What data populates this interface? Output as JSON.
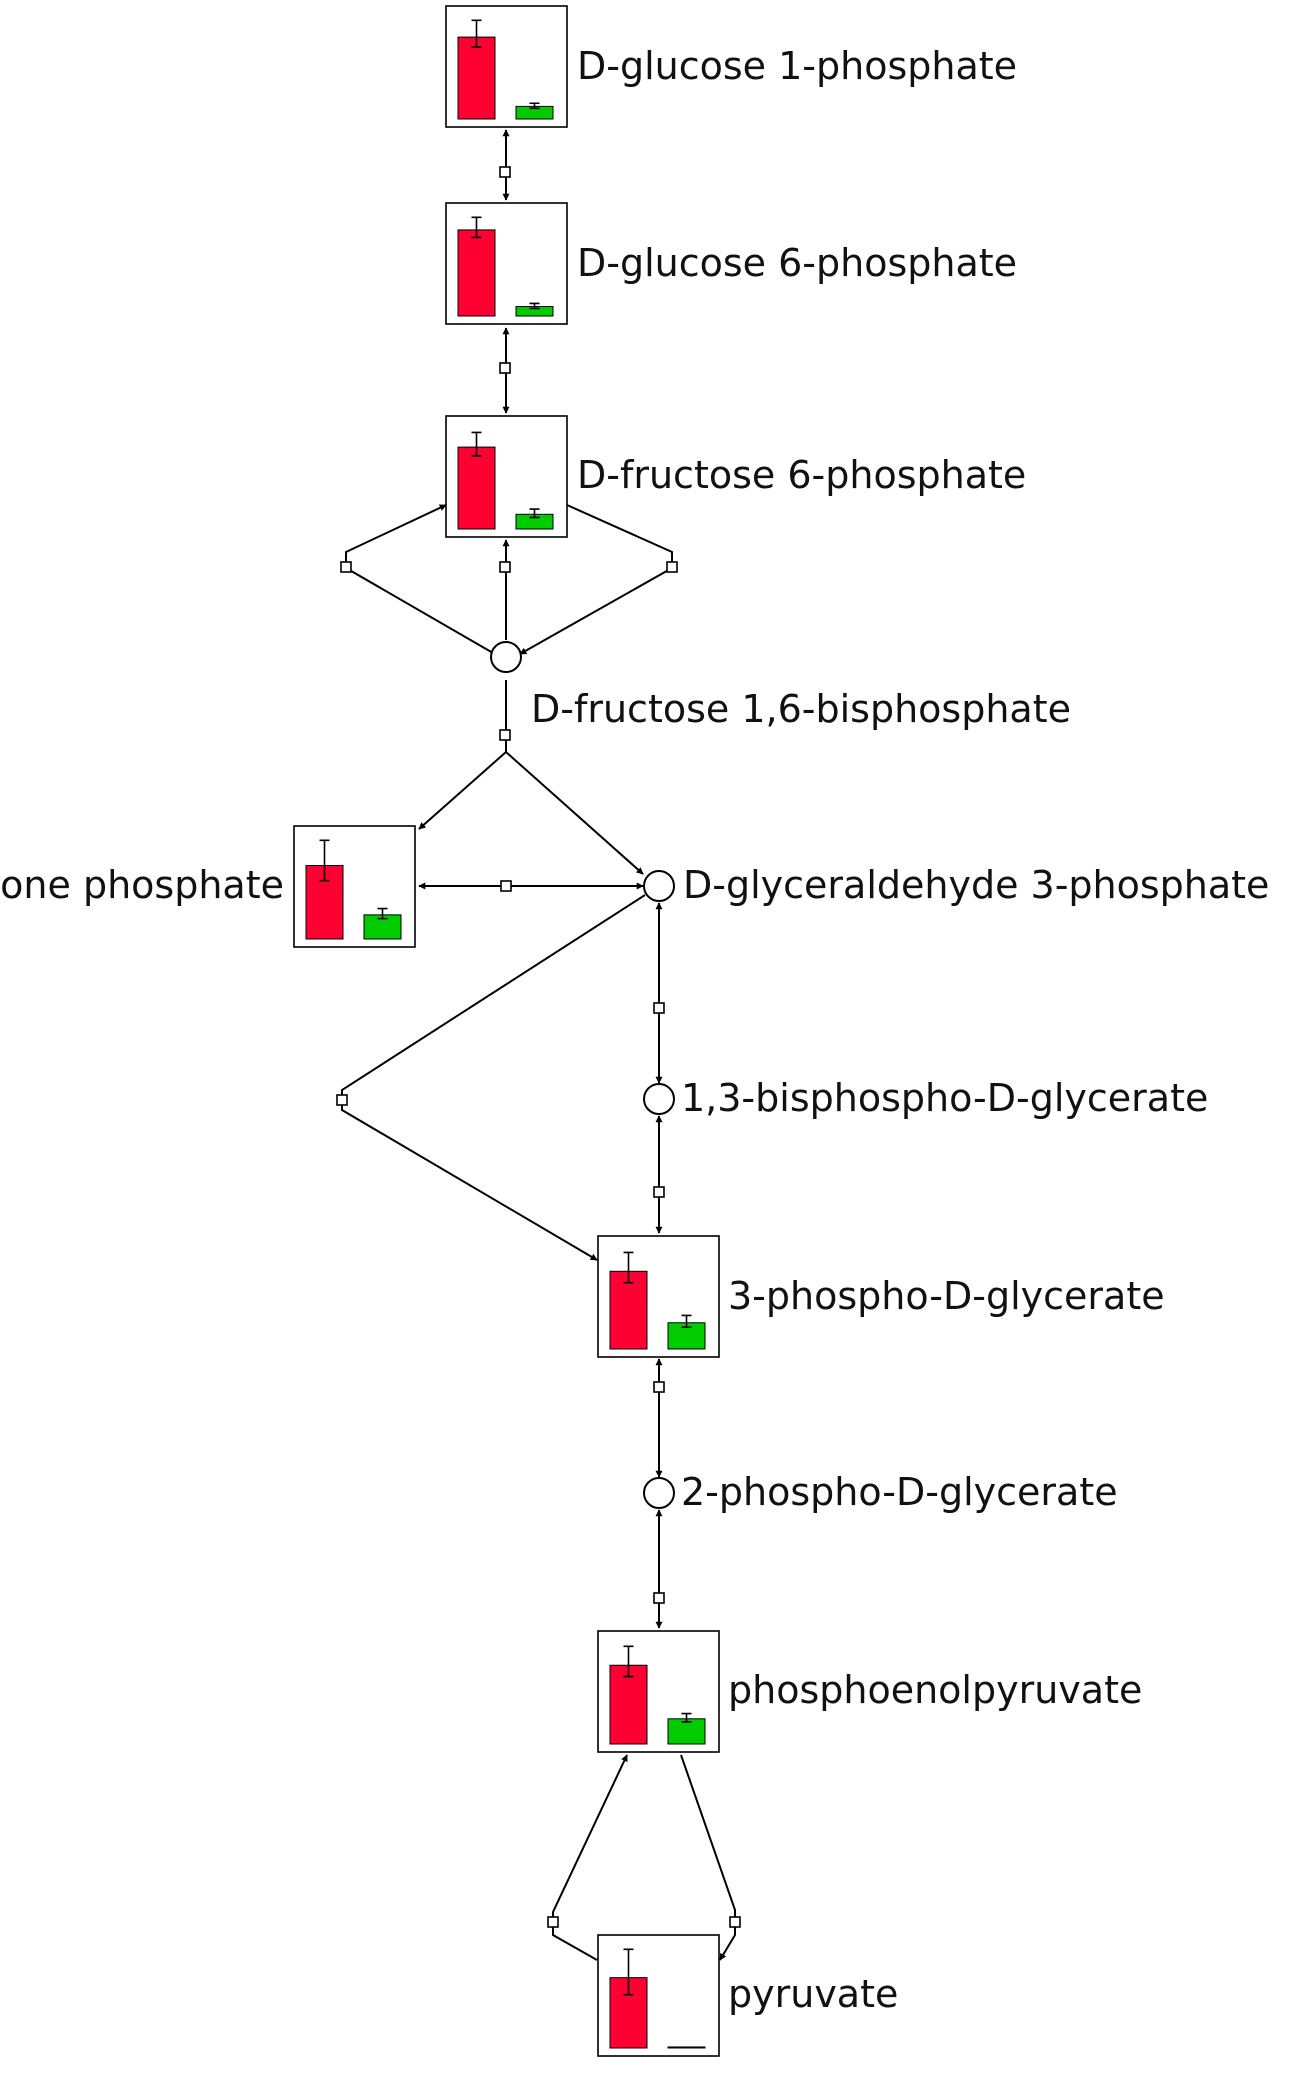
{
  "colors": {
    "series_a": "#ff0033",
    "series_b": "#00cc00",
    "edge": "#000000"
  },
  "nodes": {
    "g1p": {
      "label": "D-glucose 1-phosphate"
    },
    "g6p": {
      "label": "D-glucose 6-phosphate"
    },
    "f6p": {
      "label": "D-fructose 6-phosphate"
    },
    "fbp": {
      "label": "D-fructose 1,6-bisphosphate"
    },
    "dhap": {
      "label": "tone phosphate"
    },
    "gap": {
      "label": "D-glyceraldehyde 3-phosphate"
    },
    "bpg": {
      "label": "1,3-bisphospho-D-glycerate"
    },
    "pg3": {
      "label": "3-phospho-D-glycerate"
    },
    "pg2": {
      "label": "2-phospho-D-glycerate"
    },
    "pep": {
      "label": "phosphoenolpyruvate"
    },
    "pyr": {
      "label": "pyruvate"
    }
  },
  "chart_data": {
    "type": "bar",
    "note_scale": "relative bar heights, 0-1 of panel",
    "series": [
      {
        "name": "",
        "color": "#ff0033"
      },
      {
        "name": "",
        "color": "#00cc00"
      }
    ],
    "panels": [
      {
        "node": "g1p",
        "values": [
          0.78,
          0.12
        ],
        "errors": [
          0.16,
          0.03
        ]
      },
      {
        "node": "g6p",
        "values": [
          0.82,
          0.09
        ],
        "errors": [
          0.12,
          0.03
        ]
      },
      {
        "node": "f6p",
        "values": [
          0.78,
          0.14
        ],
        "errors": [
          0.14,
          0.05
        ]
      },
      {
        "node": "dhap",
        "values": [
          0.7,
          0.23
        ],
        "errors": [
          0.24,
          0.06
        ]
      },
      {
        "node": "pg3",
        "values": [
          0.74,
          0.25
        ],
        "errors": [
          0.18,
          0.07
        ]
      },
      {
        "node": "pep",
        "values": [
          0.75,
          0.24
        ],
        "errors": [
          0.18,
          0.05
        ]
      },
      {
        "node": "pyr",
        "values": [
          0.67,
          0.01
        ],
        "errors": [
          0.27,
          0.0
        ]
      }
    ]
  }
}
